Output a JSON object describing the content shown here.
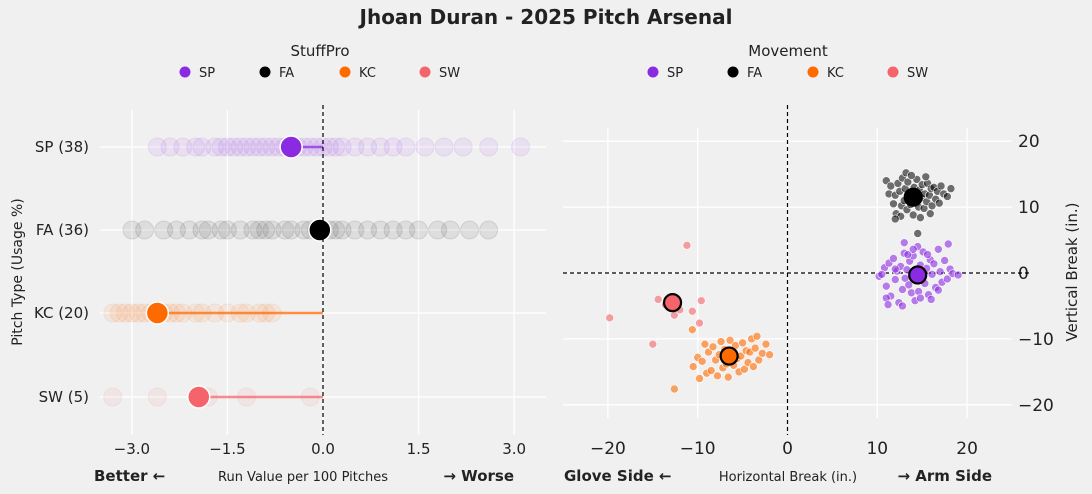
{
  "title": "Jhoan Duran - 2025 Pitch Arsenal",
  "colors": {
    "SP": "#8a2be2",
    "FA": "#000000",
    "KC": "#ff6a00",
    "SW": "#f4646a",
    "bg": "#f0f0f0",
    "grid": "#ffffff"
  },
  "chart_data": [
    {
      "type": "scatter",
      "title": "StuffPro",
      "legend": {
        "title": "StuffPro",
        "position": "top-center",
        "entries": [
          "SP",
          "FA",
          "KC",
          "SW"
        ]
      },
      "xlabel": "Run Value per 100 Pitches",
      "xlabel_left": "Better ←",
      "xlabel_right": "→ Worse",
      "ylabel": "Pitch Type (Usage %)",
      "xlim": [
        -3.5,
        3.5
      ],
      "xticks": [
        "−3.0",
        "−1.5",
        "0.0",
        "1.5",
        "3.0"
      ],
      "xtick_values": [
        -3.0,
        -1.5,
        0.0,
        1.5,
        3.0
      ],
      "reference_x": 0,
      "categories": [
        "SP (38)",
        "FA (36)",
        "KC (20)",
        "SW (5)"
      ],
      "series": [
        {
          "name": "SP",
          "usage": 38,
          "mean": -0.5,
          "samples": [
            -2.6,
            -2.4,
            -2.2,
            -2.0,
            -1.9,
            -1.7,
            -1.6,
            -1.5,
            -1.4,
            -1.3,
            -1.2,
            -1.1,
            -1.0,
            -0.9,
            -0.8,
            -0.7,
            -0.6,
            -0.4,
            -0.3,
            -0.2,
            -0.1,
            0.0,
            0.1,
            0.2,
            0.3,
            0.5,
            0.7,
            0.9,
            1.1,
            1.3,
            1.6,
            1.9,
            2.2,
            2.6,
            3.1
          ]
        },
        {
          "name": "FA",
          "usage": 36,
          "mean": -0.05,
          "samples": [
            -3.0,
            -2.8,
            -2.5,
            -2.3,
            -2.1,
            -1.9,
            -1.8,
            -1.6,
            -1.5,
            -1.3,
            -1.1,
            -1.0,
            -0.9,
            -0.8,
            -0.6,
            -0.5,
            -0.3,
            -0.2,
            -0.1,
            0.1,
            0.2,
            0.3,
            0.5,
            0.7,
            0.9,
            1.1,
            1.3,
            1.5,
            1.8,
            2.0,
            2.3,
            2.6
          ]
        },
        {
          "name": "KC",
          "usage": 20,
          "mean": -2.6,
          "samples": [
            -3.3,
            -3.2,
            -3.1,
            -3.0,
            -2.9,
            -2.8,
            -2.7,
            -2.5,
            -2.4,
            -2.3,
            -2.2,
            -2.0,
            -1.9,
            -1.7,
            -1.5,
            -1.3,
            -1.2,
            -1.0,
            -0.9,
            -0.8
          ]
        },
        {
          "name": "SW",
          "usage": 5,
          "mean": -1.95,
          "samples": [
            -3.3,
            -2.6,
            -1.8,
            -1.2,
            -0.2
          ]
        }
      ]
    },
    {
      "type": "scatter",
      "title": "Movement",
      "legend": {
        "title": "Movement",
        "position": "top-center",
        "entries": [
          "SP",
          "FA",
          "KC",
          "SW"
        ]
      },
      "xlabel": "Horizontal Break (in.)",
      "xlabel_left": "Glove Side ←",
      "xlabel_right": "→ Arm Side",
      "ylabel": "Vertical Break (in.)",
      "xlim": [
        -25,
        25
      ],
      "ylim": [
        -22,
        22
      ],
      "xticks": [
        "−20",
        "−10",
        "0",
        "10",
        "20"
      ],
      "xtick_values": [
        -20,
        -10,
        0,
        10,
        20
      ],
      "yticks": [
        "20",
        "10",
        "0",
        "−10",
        "−20"
      ],
      "ytick_values": [
        20,
        10,
        0,
        -10,
        -20
      ],
      "series": [
        {
          "name": "SP",
          "mean": [
            14.5,
            -0.3
          ],
          "points": [
            [
              10.2,
              -0.5
            ],
            [
              10.8,
              0.8
            ],
            [
              11.0,
              -2.0
            ],
            [
              11.3,
              1.5
            ],
            [
              11.5,
              -3.5
            ],
            [
              11.8,
              2.2
            ],
            [
              12.0,
              -1.0
            ],
            [
              12.2,
              0.3
            ],
            [
              12.4,
              -4.5
            ],
            [
              12.6,
              1.0
            ],
            [
              12.8,
              -2.5
            ],
            [
              13.0,
              3.0
            ],
            [
              13.1,
              -0.8
            ],
            [
              13.3,
              0.5
            ],
            [
              13.5,
              -1.8
            ],
            [
              13.6,
              1.8
            ],
            [
              13.8,
              -3.0
            ],
            [
              14.0,
              2.6
            ],
            [
              14.1,
              0.0
            ],
            [
              14.3,
              -1.2
            ],
            [
              14.5,
              4.0
            ],
            [
              14.6,
              -2.8
            ],
            [
              14.8,
              1.2
            ],
            [
              15.0,
              -0.6
            ],
            [
              15.1,
              3.2
            ],
            [
              15.3,
              -1.6
            ],
            [
              15.5,
              0.7
            ],
            [
              15.7,
              -3.3
            ],
            [
              15.9,
              2.0
            ],
            [
              16.1,
              -0.2
            ],
            [
              16.3,
              1.4
            ],
            [
              16.5,
              -2.2
            ],
            [
              16.8,
              3.6
            ],
            [
              17.0,
              0.2
            ],
            [
              17.2,
              -1.4
            ],
            [
              17.5,
              1.9
            ],
            [
              17.8,
              -0.9
            ],
            [
              18.1,
              0.6
            ],
            [
              18.4,
              -0.1
            ],
            [
              19.0,
              -0.3
            ],
            [
              11.0,
              -3.8
            ],
            [
              11.2,
              -4.8
            ],
            [
              12.8,
              -5.0
            ],
            [
              14.2,
              -4.2
            ],
            [
              16.0,
              -4.0
            ],
            [
              13.4,
              2.8
            ],
            [
              15.6,
              2.8
            ],
            [
              14.0,
              3.6
            ],
            [
              16.8,
              -2.6
            ],
            [
              12.0,
              0.6
            ],
            [
              14.8,
              -3.8
            ],
            [
              17.9,
              4.4
            ],
            [
              10.5,
              -0.2
            ],
            [
              13.0,
              4.6
            ]
          ]
        },
        {
          "name": "FA",
          "mean": [
            14.0,
            11.5
          ],
          "points": [
            [
              11.0,
              14.0
            ],
            [
              11.3,
              12.0
            ],
            [
              11.5,
              13.2
            ],
            [
              11.8,
              10.5
            ],
            [
              12.0,
              11.8
            ],
            [
              12.1,
              9.0
            ],
            [
              12.3,
              13.6
            ],
            [
              12.5,
              12.4
            ],
            [
              12.7,
              10.2
            ],
            [
              12.8,
              14.4
            ],
            [
              13.0,
              11.0
            ],
            [
              13.1,
              12.8
            ],
            [
              13.3,
              9.6
            ],
            [
              13.4,
              13.8
            ],
            [
              13.6,
              11.6
            ],
            [
              13.7,
              10.4
            ],
            [
              13.9,
              12.2
            ],
            [
              14.0,
              8.8
            ],
            [
              14.1,
              13.0
            ],
            [
              14.3,
              11.2
            ],
            [
              14.4,
              14.2
            ],
            [
              14.6,
              10.0
            ],
            [
              14.7,
              12.6
            ],
            [
              14.9,
              11.4
            ],
            [
              15.0,
              13.4
            ],
            [
              15.2,
              9.8
            ],
            [
              15.3,
              12.0
            ],
            [
              15.5,
              10.8
            ],
            [
              15.6,
              13.6
            ],
            [
              15.8,
              11.8
            ],
            [
              16.0,
              12.8
            ],
            [
              16.1,
              10.2
            ],
            [
              16.3,
              13.0
            ],
            [
              16.5,
              11.2
            ],
            [
              16.7,
              12.4
            ],
            [
              16.9,
              10.6
            ],
            [
              17.1,
              13.2
            ],
            [
              17.4,
              12.0
            ],
            [
              17.8,
              11.6
            ],
            [
              18.2,
              12.8
            ],
            [
              13.2,
              15.2
            ],
            [
              14.8,
              8.4
            ],
            [
              14.5,
              6.0
            ],
            [
              12.6,
              8.6
            ],
            [
              15.9,
              9.0
            ],
            [
              13.8,
              14.8
            ],
            [
              15.4,
              14.6
            ],
            [
              12.0,
              8.2
            ]
          ]
        },
        {
          "name": "KC",
          "mean": [
            -6.5,
            -12.6
          ],
          "points": [
            [
              -10.5,
              -14.2
            ],
            [
              -10.0,
              -12.8
            ],
            [
              -9.8,
              -16.0
            ],
            [
              -9.5,
              -13.4
            ],
            [
              -9.2,
              -10.8
            ],
            [
              -9.0,
              -15.2
            ],
            [
              -8.8,
              -12.0
            ],
            [
              -8.5,
              -14.8
            ],
            [
              -8.3,
              -11.2
            ],
            [
              -8.0,
              -13.2
            ],
            [
              -7.8,
              -15.6
            ],
            [
              -7.6,
              -12.4
            ],
            [
              -7.4,
              -10.4
            ],
            [
              -7.2,
              -14.4
            ],
            [
              -7.0,
              -11.6
            ],
            [
              -6.8,
              -13.8
            ],
            [
              -6.6,
              -15.8
            ],
            [
              -6.4,
              -10.2
            ],
            [
              -6.2,
              -12.2
            ],
            [
              -6.0,
              -14.0
            ],
            [
              -5.8,
              -11.0
            ],
            [
              -5.6,
              -13.0
            ],
            [
              -5.4,
              -15.0
            ],
            [
              -5.2,
              -12.6
            ],
            [
              -5.0,
              -10.6
            ],
            [
              -4.8,
              -14.6
            ],
            [
              -4.6,
              -11.8
            ],
            [
              -4.4,
              -13.6
            ],
            [
              -4.2,
              -12.0
            ],
            [
              -4.0,
              -10.0
            ],
            [
              -3.8,
              -14.2
            ],
            [
              -3.6,
              -11.4
            ],
            [
              -3.4,
              -9.6
            ],
            [
              -3.2,
              -13.2
            ],
            [
              -2.8,
              -12.2
            ],
            [
              -2.4,
              -10.8
            ],
            [
              -2.0,
              -12.4
            ],
            [
              -12.6,
              -17.6
            ],
            [
              -10.6,
              -8.6
            ]
          ]
        },
        {
          "name": "SW",
          "mean": [
            -12.8,
            -4.5
          ],
          "points": [
            [
              -19.8,
              -6.8
            ],
            [
              -15.0,
              -10.8
            ],
            [
              -14.4,
              -4.0
            ],
            [
              -13.6,
              -4.8
            ],
            [
              -13.2,
              -3.8
            ],
            [
              -12.6,
              -6.4
            ],
            [
              -12.0,
              -5.6
            ],
            [
              -11.2,
              4.2
            ],
            [
              -10.6,
              -5.8
            ],
            [
              -9.8,
              -7.6
            ],
            [
              -9.6,
              -4.2
            ]
          ]
        }
      ]
    }
  ]
}
